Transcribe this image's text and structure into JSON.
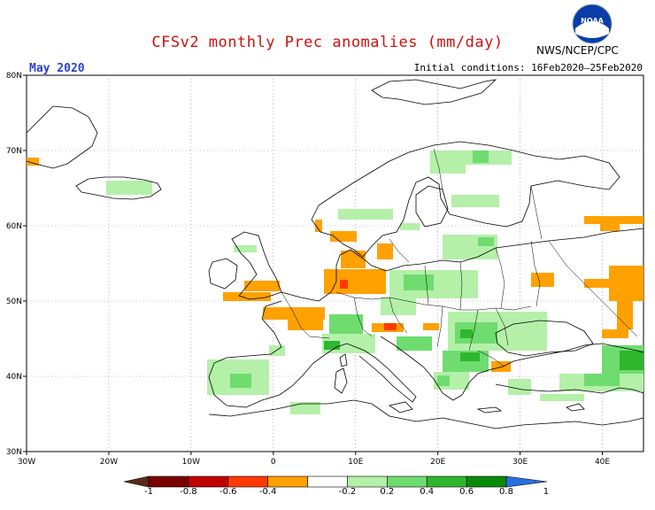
{
  "header": {
    "title": "CFSv2 monthly Prec anomalies (mm/day)",
    "month": "May 2020",
    "initial_conditions": "Initial conditions: 16Feb2020–25Feb2020",
    "agency": "NWS/NCEP/CPC",
    "logo_text": "NOAA"
  },
  "map": {
    "lon_range": [
      -30,
      45
    ],
    "lat_range": [
      30,
      80
    ],
    "x_ticks": [
      "30W",
      "20W",
      "10W",
      "0",
      "10E",
      "20E",
      "30E",
      "40E"
    ],
    "y_ticks": [
      "30N",
      "40N",
      "50N",
      "60N",
      "70N",
      "80N"
    ]
  },
  "colorbar": {
    "labels": [
      "-1",
      "-0.8",
      "-0.6",
      "-0.4",
      "-0.2",
      "0.2",
      "0.4",
      "0.6",
      "0.8",
      "1"
    ],
    "colors": [
      "#7a0000",
      "#c00000",
      "#ff3a00",
      "#ffa100",
      "#ffffff",
      "#b4f0a8",
      "#6fdc6f",
      "#2fb62f",
      "#0a8a0a"
    ],
    "low_arrow_color": "#5a2a1a",
    "high_arrow_color": "#2a6fe0"
  },
  "legend_colors": {
    "dry_light": "#ffa100",
    "dry_strong": "#ff3a00",
    "wet_light": "#b4f0a8",
    "wet_mid": "#6fdc6f",
    "wet_strong": "#2fb62f"
  }
}
